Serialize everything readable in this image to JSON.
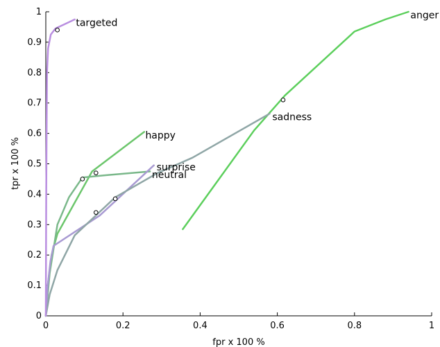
{
  "chart_data": {
    "type": "line",
    "xlabel": "fpr x 100 %",
    "ylabel": "tpr x 100 %",
    "xlim": [
      0,
      1
    ],
    "ylim": [
      0,
      1
    ],
    "xticks": [
      "0",
      "0.2",
      "0.4",
      "0.6",
      "0.8",
      "1"
    ],
    "yticks": [
      "0",
      "0.1",
      "0.2",
      "0.3",
      "0.4",
      "0.5",
      "0.6",
      "0.7",
      "0.8",
      "0.9",
      "1"
    ],
    "grid": false,
    "series": [
      {
        "name": "anger",
        "color": "#5ccf5c",
        "points": [
          [
            0.355,
            0.285
          ],
          [
            0.54,
            0.61
          ],
          [
            0.62,
            0.725
          ],
          [
            0.8,
            0.935
          ],
          [
            0.88,
            0.975
          ],
          [
            0.94,
            1.0
          ]
        ],
        "marker": [
          0.615,
          0.71
        ]
      },
      {
        "name": "happy",
        "color": "#6cc66c",
        "points": [
          [
            0.0,
            0.0
          ],
          [
            0.005,
            0.1
          ],
          [
            0.015,
            0.2
          ],
          [
            0.03,
            0.27
          ],
          [
            0.12,
            0.475
          ],
          [
            0.255,
            0.605
          ]
        ],
        "marker": [
          0.13,
          0.47
        ]
      },
      {
        "name": "neutral",
        "color": "#7ab88a",
        "points": [
          [
            0.0,
            0.0
          ],
          [
            0.01,
            0.14
          ],
          [
            0.03,
            0.3
          ],
          [
            0.06,
            0.39
          ],
          [
            0.095,
            0.455
          ],
          [
            0.15,
            0.462
          ],
          [
            0.27,
            0.475
          ]
        ],
        "marker": [
          0.095,
          0.45
        ]
      },
      {
        "name": "surprise",
        "color": "#a89ad2",
        "points": [
          [
            0.0,
            0.0
          ],
          [
            0.005,
            0.1
          ],
          [
            0.012,
            0.18
          ],
          [
            0.02,
            0.23
          ],
          [
            0.14,
            0.33
          ],
          [
            0.28,
            0.495
          ]
        ],
        "marker": [
          0.13,
          0.34
        ]
      },
      {
        "name": "sadness",
        "color": "#8fa6a6",
        "points": [
          [
            0.0,
            0.0
          ],
          [
            0.01,
            0.07
          ],
          [
            0.03,
            0.15
          ],
          [
            0.075,
            0.265
          ],
          [
            0.18,
            0.39
          ],
          [
            0.29,
            0.47
          ],
          [
            0.38,
            0.52
          ],
          [
            0.58,
            0.665
          ]
        ],
        "marker": [
          0.18,
          0.385
        ]
      },
      {
        "name": "targeted",
        "color": "#b98ee0",
        "points": [
          [
            0.0,
            0.0
          ],
          [
            0.001,
            0.4
          ],
          [
            0.003,
            0.8
          ],
          [
            0.006,
            0.88
          ],
          [
            0.013,
            0.925
          ],
          [
            0.025,
            0.945
          ],
          [
            0.05,
            0.96
          ],
          [
            0.075,
            0.975
          ]
        ],
        "marker": [
          0.03,
          0.94
        ]
      }
    ],
    "labels": [
      {
        "text": "anger",
        "x": 0.945,
        "y": 0.99
      },
      {
        "text": "happy",
        "x": 0.258,
        "y": 0.595
      },
      {
        "text": "neutral",
        "x": 0.275,
        "y": 0.465
      },
      {
        "text": "surprise",
        "x": 0.287,
        "y": 0.49
      },
      {
        "text": "sadness",
        "x": 0.587,
        "y": 0.655
      },
      {
        "text": "targeted",
        "x": 0.078,
        "y": 0.965
      }
    ]
  }
}
